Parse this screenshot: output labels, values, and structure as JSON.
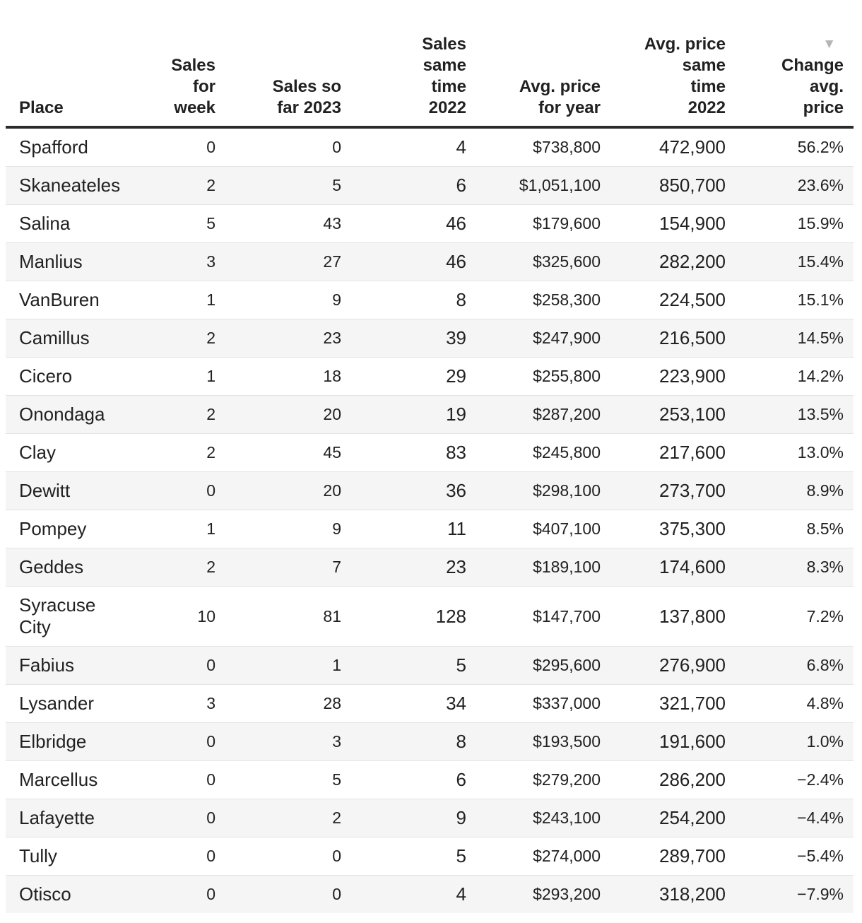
{
  "chart_data": {
    "type": "table",
    "columns": [
      "Place",
      "Sales for week",
      "Sales so far 2023",
      "Sales same time 2022",
      "Avg. price for year",
      "Avg. price same time 2022",
      "Change avg. price"
    ],
    "rows": [
      [
        "Spafford",
        "0",
        "0",
        "4",
        "$738,800",
        "472,900",
        "56.2%"
      ],
      [
        "Skaneateles",
        "2",
        "5",
        "6",
        "$1,051,100",
        "850,700",
        "23.6%"
      ],
      [
        "Salina",
        "5",
        "43",
        "46",
        "$179,600",
        "154,900",
        "15.9%"
      ],
      [
        "Manlius",
        "3",
        "27",
        "46",
        "$325,600",
        "282,200",
        "15.4%"
      ],
      [
        "VanBuren",
        "1",
        "9",
        "8",
        "$258,300",
        "224,500",
        "15.1%"
      ],
      [
        "Camillus",
        "2",
        "23",
        "39",
        "$247,900",
        "216,500",
        "14.5%"
      ],
      [
        "Cicero",
        "1",
        "18",
        "29",
        "$255,800",
        "223,900",
        "14.2%"
      ],
      [
        "Onondaga",
        "2",
        "20",
        "19",
        "$287,200",
        "253,100",
        "13.5%"
      ],
      [
        "Clay",
        "2",
        "45",
        "83",
        "$245,800",
        "217,600",
        "13.0%"
      ],
      [
        "Dewitt",
        "0",
        "20",
        "36",
        "$298,100",
        "273,700",
        "8.9%"
      ],
      [
        "Pompey",
        "1",
        "9",
        "11",
        "$407,100",
        "375,300",
        "8.5%"
      ],
      [
        "Geddes",
        "2",
        "7",
        "23",
        "$189,100",
        "174,600",
        "8.3%"
      ],
      [
        "Syracuse City",
        "10",
        "81",
        "128",
        "$147,700",
        "137,800",
        "7.2%"
      ],
      [
        "Fabius",
        "0",
        "1",
        "5",
        "$295,600",
        "276,900",
        "6.8%"
      ],
      [
        "Lysander",
        "3",
        "28",
        "34",
        "$337,000",
        "321,700",
        "4.8%"
      ],
      [
        "Elbridge",
        "0",
        "3",
        "8",
        "$193,500",
        "191,600",
        "1.0%"
      ],
      [
        "Marcellus",
        "0",
        "5",
        "6",
        "$279,200",
        "286,200",
        "−2.4%"
      ],
      [
        "Lafayette",
        "0",
        "2",
        "9",
        "$243,100",
        "254,200",
        "−4.4%"
      ],
      [
        "Tully",
        "0",
        "0",
        "5",
        "$274,000",
        "289,700",
        "−5.4%"
      ],
      [
        "Otisco",
        "0",
        "0",
        "4",
        "$293,200",
        "318,200",
        "−7.9%"
      ]
    ],
    "sort": {
      "column": "Change avg. price",
      "direction": "descending"
    },
    "layout_hints": {
      "striped_rows": true,
      "numeric_columns_right_aligned": true,
      "dollar_sign_only_in": "Avg. price for year"
    }
  },
  "header": {
    "columns": [
      {
        "id": "place",
        "label": "Place"
      },
      {
        "id": "sales-week",
        "label": "Sales\nfor\nweek"
      },
      {
        "id": "sales-2023",
        "label": "Sales so\nfar 2023"
      },
      {
        "id": "sales-2022",
        "label": "Sales\nsame\ntime\n2022"
      },
      {
        "id": "price-year",
        "label": "Avg. price\nfor year"
      },
      {
        "id": "price-2022",
        "label": "Avg. price\nsame\ntime\n2022"
      },
      {
        "id": "change",
        "label": "Change\navg.\nprice",
        "sort_indicator": "▼"
      }
    ]
  },
  "colors": {
    "text": "#212121",
    "header_rule": "#2b2b2b",
    "row_stripe": "#f5f5f5",
    "row_divider": "#e3e3e3",
    "sort_arrow": "#b5b5b5"
  }
}
